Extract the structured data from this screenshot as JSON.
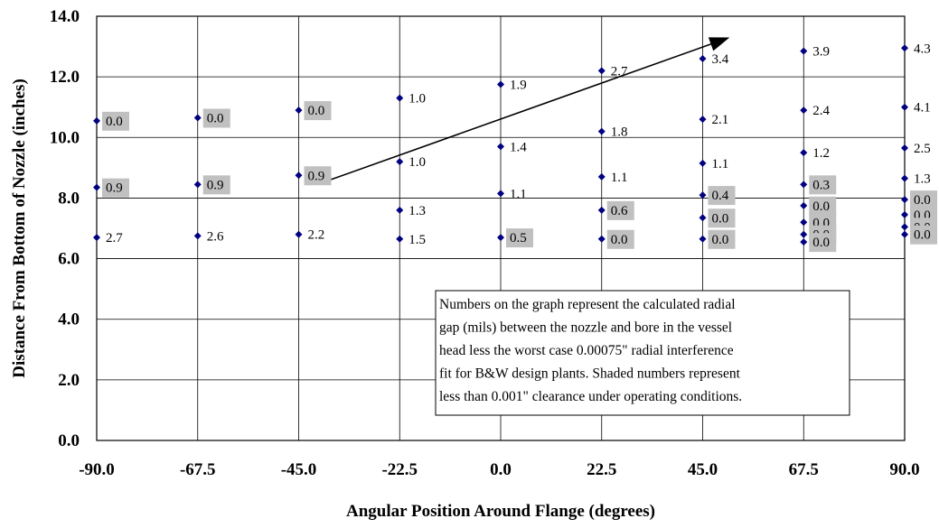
{
  "chart_data": {
    "type": "scatter",
    "xlabel": "Angular Position Around Flange (degrees)",
    "ylabel": "Distance From Bottom of Nozzle (inches)",
    "xlim": [
      -90,
      90
    ],
    "ylim": [
      0,
      14
    ],
    "x_ticks": [
      -90,
      -67.5,
      -45,
      -22.5,
      0,
      22.5,
      45,
      67.5,
      90
    ],
    "x_tick_labels": [
      "-90.0",
      "-67.5",
      "-45.0",
      "-22.5",
      "0.0",
      "22.5",
      "45.0",
      "67.5",
      "90.0"
    ],
    "y_ticks": [
      0,
      2,
      4,
      6,
      8,
      10,
      12,
      14
    ],
    "y_tick_labels": [
      "0.0",
      "2.0",
      "4.0",
      "6.0",
      "8.0",
      "10.0",
      "12.0",
      "14.0"
    ],
    "grid": true,
    "marker_color": "#000080",
    "shade_color": "#c0c0c0",
    "points": [
      {
        "x": -90,
        "y": 10.55,
        "label": "0.0",
        "shaded": true
      },
      {
        "x": -90,
        "y": 8.35,
        "label": "0.9",
        "shaded": true
      },
      {
        "x": -90,
        "y": 6.7,
        "label": "2.7",
        "shaded": false
      },
      {
        "x": -67.5,
        "y": 10.65,
        "label": "0.0",
        "shaded": true
      },
      {
        "x": -67.5,
        "y": 8.45,
        "label": "0.9",
        "shaded": true
      },
      {
        "x": -67.5,
        "y": 6.75,
        "label": "2.6",
        "shaded": false
      },
      {
        "x": -45,
        "y": 10.9,
        "label": "0.0",
        "shaded": true
      },
      {
        "x": -45,
        "y": 8.75,
        "label": "0.9",
        "shaded": true
      },
      {
        "x": -45,
        "y": 6.8,
        "label": "2.2",
        "shaded": false
      },
      {
        "x": -22.5,
        "y": 11.3,
        "label": "1.0",
        "shaded": false
      },
      {
        "x": -22.5,
        "y": 9.2,
        "label": "1.0",
        "shaded": false
      },
      {
        "x": -22.5,
        "y": 7.6,
        "label": "1.3",
        "shaded": false
      },
      {
        "x": -22.5,
        "y": 6.65,
        "label": "1.5",
        "shaded": false
      },
      {
        "x": 0,
        "y": 11.75,
        "label": "1.9",
        "shaded": false
      },
      {
        "x": 0,
        "y": 9.7,
        "label": "1.4",
        "shaded": false
      },
      {
        "x": 0,
        "y": 8.15,
        "label": "1.1",
        "shaded": false
      },
      {
        "x": 0,
        "y": 6.7,
        "label": "0.5",
        "shaded": true
      },
      {
        "x": 22.5,
        "y": 12.2,
        "label": "2.7",
        "shaded": false
      },
      {
        "x": 22.5,
        "y": 10.2,
        "label": "1.8",
        "shaded": false
      },
      {
        "x": 22.5,
        "y": 8.7,
        "label": "1.1",
        "shaded": false
      },
      {
        "x": 22.5,
        "y": 7.6,
        "label": "0.6",
        "shaded": true
      },
      {
        "x": 22.5,
        "y": 6.65,
        "label": "0.0",
        "shaded": true
      },
      {
        "x": 45,
        "y": 12.6,
        "label": "3.4",
        "shaded": false
      },
      {
        "x": 45,
        "y": 10.6,
        "label": "2.1",
        "shaded": false
      },
      {
        "x": 45,
        "y": 9.15,
        "label": "1.1",
        "shaded": false
      },
      {
        "x": 45,
        "y": 8.1,
        "label": "0.4",
        "shaded": true
      },
      {
        "x": 45,
        "y": 7.35,
        "label": "0.0",
        "shaded": true
      },
      {
        "x": 45,
        "y": 6.65,
        "label": "0.0",
        "shaded": true
      },
      {
        "x": 67.5,
        "y": 12.85,
        "label": "3.9",
        "shaded": false
      },
      {
        "x": 67.5,
        "y": 10.9,
        "label": "2.4",
        "shaded": false
      },
      {
        "x": 67.5,
        "y": 9.5,
        "label": "1.2",
        "shaded": false
      },
      {
        "x": 67.5,
        "y": 8.45,
        "label": "0.3",
        "shaded": true
      },
      {
        "x": 67.5,
        "y": 7.75,
        "label": "0.0",
        "shaded": true
      },
      {
        "x": 67.5,
        "y": 7.2,
        "label": "0.0",
        "shaded": true
      },
      {
        "x": 67.5,
        "y": 6.8,
        "label": "0.0",
        "shaded": true
      },
      {
        "x": 67.5,
        "y": 6.55,
        "label": "0.0",
        "shaded": true
      },
      {
        "x": 90,
        "y": 12.95,
        "label": "4.3",
        "shaded": false
      },
      {
        "x": 90,
        "y": 11.0,
        "label": "4.1",
        "shaded": false
      },
      {
        "x": 90,
        "y": 9.65,
        "label": "2.5",
        "shaded": false
      },
      {
        "x": 90,
        "y": 8.65,
        "label": "1.3",
        "shaded": false
      },
      {
        "x": 90,
        "y": 7.95,
        "label": "0.0",
        "shaded": true
      },
      {
        "x": 90,
        "y": 7.45,
        "label": "0.0",
        "shaded": true
      },
      {
        "x": 90,
        "y": 7.05,
        "label": "0.0",
        "shaded": true
      },
      {
        "x": 90,
        "y": 6.8,
        "label": "0.0",
        "shaded": true
      }
    ],
    "arrow": {
      "from": [
        -38,
        8.6
      ],
      "to": [
        51,
        13.3
      ]
    },
    "annotation_lines": [
      "Numbers on the graph represent the calculated radial",
      "gap (mils) between the nozzle and bore in the vessel",
      "head less the worst case 0.00075\" radial interference",
      "fit for B&W design plants.  Shaded numbers represent",
      "less than 0.001\" clearance under operating conditions."
    ]
  }
}
